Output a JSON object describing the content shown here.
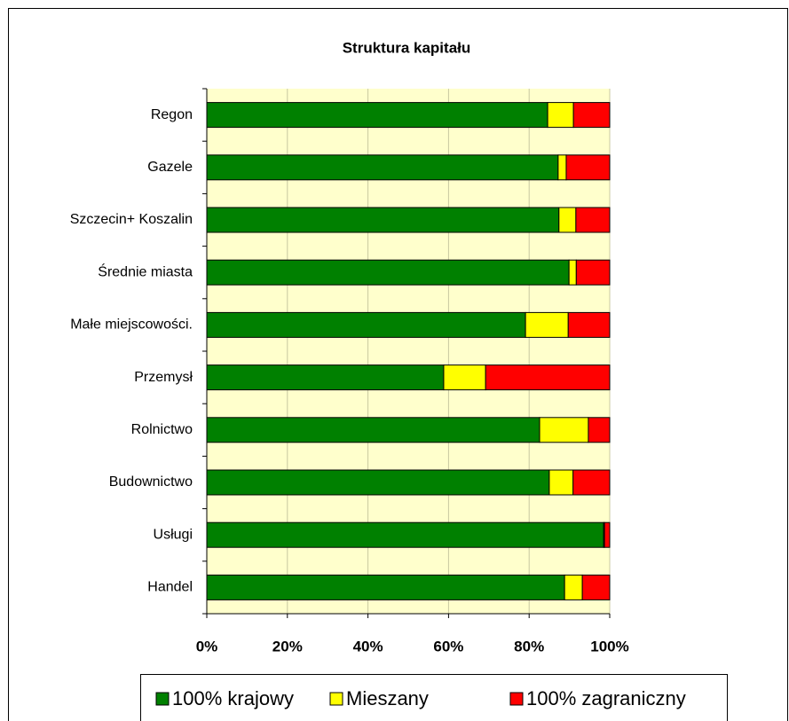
{
  "chart_data": {
    "type": "stacked_barh",
    "title": "Struktura kapitału",
    "categories": [
      "Regon",
      "Gazele",
      "Szczecin+ Koszalin",
      "Średnie miasta",
      "Małe miejscowości.",
      "Przemysł",
      "Rolnictwo",
      "Budownictwo",
      "Usługi",
      "Handel"
    ],
    "series": [
      {
        "name": "100% krajowy",
        "color": "#008000",
        "values": [
          84.6,
          87.2,
          87.4,
          89.9,
          79.1,
          58.8,
          82.6,
          85.0,
          98.5,
          88.8
        ]
      },
      {
        "name": "Mieszany",
        "color": "#ffff00",
        "values": [
          6.4,
          2.0,
          4.2,
          1.8,
          10.6,
          10.4,
          12.1,
          5.9,
          0.2,
          4.4
        ]
      },
      {
        "name": "100% zagraniczny",
        "color": "#ff0000",
        "values": [
          9.0,
          10.8,
          8.4,
          8.3,
          10.3,
          30.8,
          5.3,
          9.1,
          1.3,
          6.8
        ]
      }
    ],
    "xlim": [
      0,
      100
    ],
    "xticks": [
      {
        "value": 0,
        "label": "0%"
      },
      {
        "value": 20,
        "label": "20%"
      },
      {
        "value": 40,
        "label": "40%"
      },
      {
        "value": 60,
        "label": "60%"
      },
      {
        "value": 80,
        "label": "80%"
      },
      {
        "value": 100,
        "label": "100%"
      }
    ],
    "plot_background": "#ffffcc",
    "grid": true,
    "legend": "bottom"
  }
}
